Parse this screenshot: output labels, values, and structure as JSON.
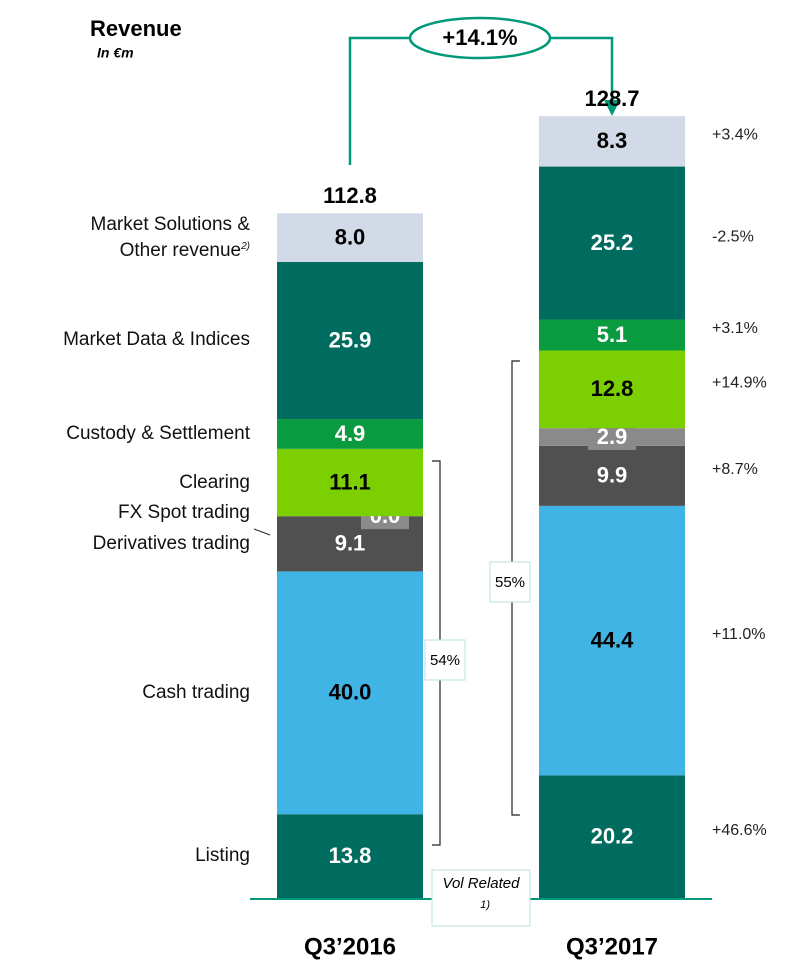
{
  "chart_data": {
    "type": "stacked_bar",
    "title": "Revenue",
    "subtitle": "In €m",
    "categories": [
      "Q3’2016",
      "Q3’2017"
    ],
    "series": [
      {
        "name": "Listing",
        "color": "#006b5f",
        "values": [
          13.8,
          20.2
        ],
        "change": "+46.6%"
      },
      {
        "name": "Cash trading",
        "color": "#41b4e6",
        "values": [
          40.0,
          44.4
        ],
        "value_labels": [
          "40.0",
          "44.4"
        ],
        "change": "+11.0%"
      },
      {
        "name": "Derivatives trading",
        "color": "#505050",
        "values": [
          9.1,
          9.9
        ],
        "change": "+8.7%"
      },
      {
        "name": "FX Spot trading",
        "color": "#8a8a8a",
        "values": [
          0.0,
          2.9
        ],
        "value_labels": [
          "0.0",
          "2.9"
        ],
        "change": null
      },
      {
        "name": "Clearing",
        "color": "#7ccf00",
        "values": [
          11.1,
          12.8
        ],
        "change": "+14.9%"
      },
      {
        "name": "Custody & Settlement",
        "color": "#0a9a3f",
        "values": [
          4.9,
          5.1
        ],
        "change": "+3.1%"
      },
      {
        "name": "Market Data & Indices",
        "color": "#006b5f",
        "values": [
          25.9,
          25.2
        ],
        "change": "-2.5%"
      },
      {
        "name": "Market Solutions & Other revenue",
        "note": "2)",
        "color": "#d3dae7",
        "values": [
          8.0,
          8.3
        ],
        "value_labels": [
          "8.0",
          "8.3"
        ],
        "change": "+3.4%"
      }
    ],
    "totals": [
      112.8,
      128.7
    ],
    "total_change": "+14.1%",
    "brackets": [
      "54%",
      "55%"
    ],
    "bracket_note": {
      "text": "Vol Related",
      "note": "1)"
    }
  }
}
